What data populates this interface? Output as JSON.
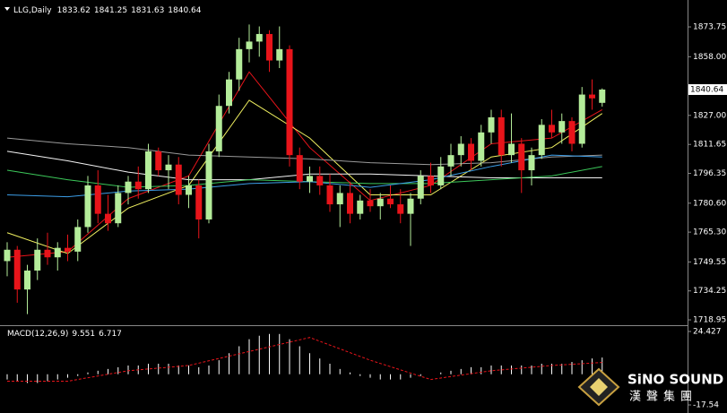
{
  "chart_data": [
    {
      "type": "candlestick",
      "title": "LLG,Daily",
      "up_color": "#b4ec9a",
      "down_color": "#e8141a",
      "open": [
        1750,
        1756,
        1735,
        1745,
        1756,
        1752,
        1757,
        1755,
        1768,
        1790,
        1775,
        1770,
        1786,
        1792,
        1788,
        1808,
        1798,
        1801,
        1785,
        1790,
        1772,
        1808,
        1832,
        1846,
        1862,
        1866,
        1870,
        1856,
        1862,
        1806,
        1792,
        1795,
        1790,
        1780,
        1786,
        1775,
        1782,
        1779,
        1783,
        1780,
        1775,
        1783,
        1795,
        1790,
        1800,
        1806,
        1812,
        1803,
        1818,
        1826,
        1806,
        1812,
        1798,
        1806,
        1822,
        1818,
        1824,
        1812,
        1838,
        1833.62
      ],
      "high": [
        1760,
        1758,
        1748,
        1762,
        1765,
        1760,
        1764,
        1772,
        1795,
        1798,
        1785,
        1790,
        1795,
        1800,
        1812,
        1810,
        1806,
        1805,
        1795,
        1793,
        1812,
        1838,
        1850,
        1868,
        1875,
        1874,
        1872,
        1874,
        1864,
        1810,
        1800,
        1800,
        1796,
        1790,
        1792,
        1785,
        1788,
        1786,
        1790,
        1788,
        1786,
        1798,
        1802,
        1805,
        1812,
        1816,
        1815,
        1822,
        1830,
        1830,
        1828,
        1815,
        1810,
        1825,
        1830,
        1828,
        1826,
        1842,
        1846,
        1841.25
      ],
      "low": [
        1742,
        1728,
        1722,
        1740,
        1748,
        1745,
        1750,
        1750,
        1765,
        1770,
        1766,
        1768,
        1780,
        1783,
        1786,
        1795,
        1788,
        1780,
        1778,
        1762,
        1770,
        1805,
        1828,
        1840,
        1855,
        1858,
        1850,
        1852,
        1800,
        1788,
        1786,
        1785,
        1776,
        1768,
        1770,
        1772,
        1776,
        1772,
        1778,
        1770,
        1758,
        1780,
        1786,
        1788,
        1795,
        1800,
        1798,
        1800,
        1812,
        1800,
        1802,
        1786,
        1790,
        1804,
        1815,
        1812,
        1808,
        1810,
        1830,
        1831.63
      ],
      "close": [
        1756,
        1735,
        1745,
        1756,
        1752,
        1757,
        1755,
        1768,
        1790,
        1775,
        1770,
        1786,
        1792,
        1788,
        1808,
        1798,
        1801,
        1785,
        1790,
        1772,
        1808,
        1832,
        1846,
        1862,
        1866,
        1870,
        1856,
        1862,
        1806,
        1792,
        1795,
        1790,
        1780,
        1786,
        1775,
        1782,
        1779,
        1783,
        1780,
        1775,
        1783,
        1795,
        1790,
        1800,
        1806,
        1812,
        1803,
        1818,
        1826,
        1806,
        1812,
        1798,
        1806,
        1822,
        1818,
        1824,
        1812,
        1838,
        1836,
        1840.64
      ],
      "ma": [
        {
          "color": "#e8141a",
          "x": [
            0,
            6,
            12,
            18,
            24,
            30,
            36,
            42,
            48,
            54,
            59
          ],
          "values": [
            1752,
            1755,
            1783,
            1795,
            1850,
            1810,
            1782,
            1790,
            1812,
            1815,
            1830
          ]
        },
        {
          "color": "#f0f060",
          "x": [
            0,
            6,
            12,
            18,
            24,
            30,
            36,
            42,
            48,
            54,
            59
          ],
          "values": [
            1765,
            1754,
            1778,
            1790,
            1835,
            1815,
            1785,
            1785,
            1805,
            1810,
            1828
          ]
        },
        {
          "color": "#9a9a9a",
          "x": [
            0,
            6,
            12,
            18,
            24,
            30,
            36,
            42,
            48,
            54,
            59
          ],
          "values": [
            1815,
            1812,
            1810,
            1806,
            1805,
            1804,
            1802,
            1801,
            1802,
            1805,
            1806
          ]
        },
        {
          "color": "#f4f4f4",
          "x": [
            0,
            6,
            12,
            18,
            24,
            30,
            36,
            42,
            48,
            54,
            59
          ],
          "values": [
            1808,
            1803,
            1797,
            1793,
            1793,
            1796,
            1796,
            1795,
            1794,
            1794,
            1794
          ]
        },
        {
          "color": "#3cc85a",
          "x": [
            0,
            6,
            12,
            18,
            24,
            30,
            36,
            42,
            48,
            54,
            59
          ],
          "values": [
            1798,
            1793,
            1789,
            1790,
            1793,
            1792,
            1791,
            1791,
            1793,
            1795,
            1800
          ]
        },
        {
          "color": "#3c9ee8",
          "x": [
            0,
            6,
            12,
            18,
            24,
            30,
            36,
            42,
            48,
            54,
            59
          ],
          "values": [
            1785,
            1784,
            1787,
            1788,
            1791,
            1792,
            1789,
            1793,
            1800,
            1806,
            1805
          ]
        }
      ],
      "ylim": [
        1716.6,
        1885.6
      ],
      "yticks": [
        1873.75,
        {
          "value": 1858,
          "label": "1858.00"
        },
        {
          "value": 1827,
          "label": "1827.00"
        },
        1811.65,
        1796.35,
        {
          "value": 1780.6,
          "label": "1780.60"
        },
        {
          "value": 1765.3,
          "label": "1765.30"
        },
        1749.55,
        1734.25,
        1718.95
      ]
    },
    {
      "type": "macd",
      "title": "MACD(12,26,9)",
      "color": "#ffffff",
      "values": [
        -3,
        -4,
        -5,
        -5,
        -4,
        -3,
        -2,
        -1,
        1,
        2,
        3,
        4,
        5,
        5,
        6,
        6,
        6,
        5,
        5,
        4,
        5,
        8,
        12,
        16,
        20,
        22,
        23,
        23,
        20,
        16,
        12,
        9,
        6,
        3,
        1,
        -1,
        -2,
        -3,
        -3,
        -3,
        -2,
        -1,
        0,
        1,
        2,
        3,
        4,
        4,
        5,
        5,
        5,
        5,
        5,
        6,
        6,
        6,
        7,
        8,
        9,
        9.551
      ],
      "signal": {
        "color": "#e8141a",
        "x": [
          0,
          6,
          12,
          18,
          24,
          30,
          36,
          42,
          48,
          54,
          59
        ],
        "values": [
          -4,
          -4,
          2,
          5,
          13,
          21,
          8,
          -3,
          2,
          5,
          6.717
        ]
      },
      "ylim": [
        -20.1,
        26.99
      ],
      "yticks": [
        24.427,
        -17.54
      ]
    }
  ],
  "logo": {
    "name": "SiNO SOUND",
    "subtitle": "漢聲集團"
  }
}
